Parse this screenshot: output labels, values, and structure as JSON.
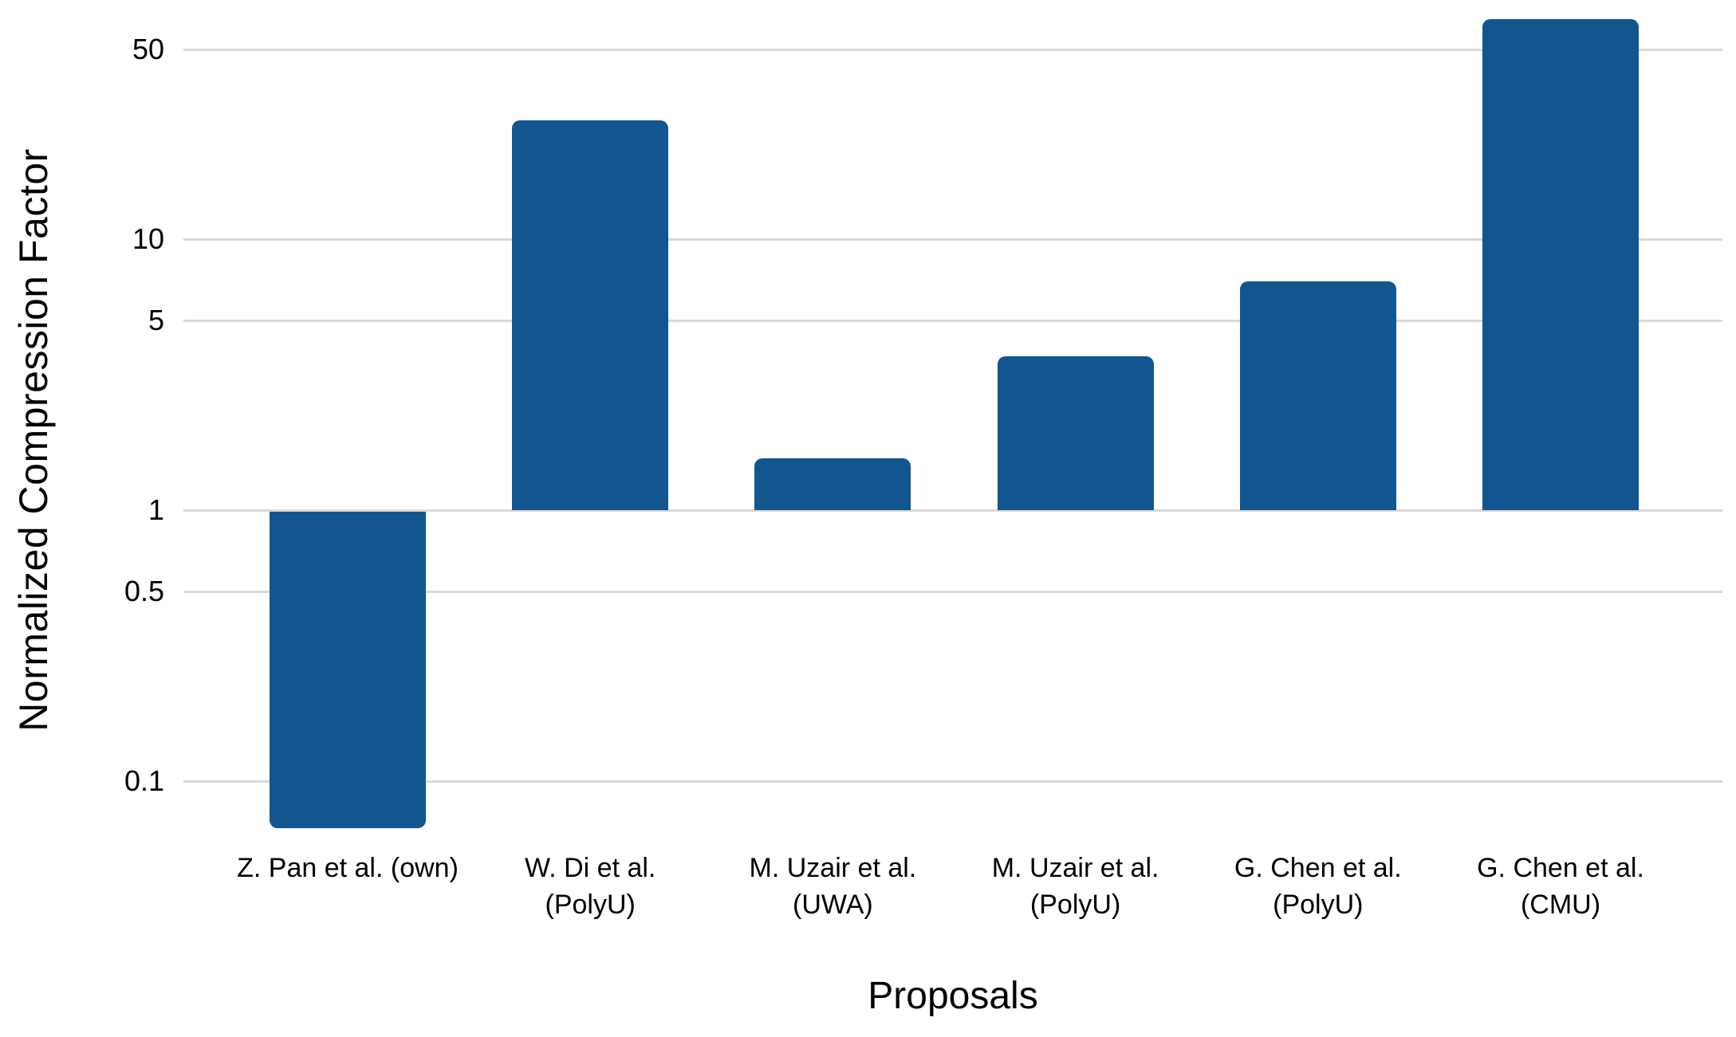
{
  "chart_data": {
    "type": "bar",
    "title": "",
    "xlabel": "Proposals",
    "ylabel": "Normalized Compression Factor",
    "y_scale": "log",
    "bar_baseline": 1,
    "grid": true,
    "legend": "none",
    "categories": [
      "Z. Pan et al. (own)",
      "W. Di et al.\n(PolyU)",
      "M. Uzair et al.\n(UWA)",
      "M. Uzair et al.\n(PolyU)",
      "G. Chen et al.\n(PolyU)",
      "G. Chen et al.\n(CMU)"
    ],
    "values": [
      0.067,
      27.5,
      1.55,
      3.7,
      7.0,
      65
    ],
    "y_ticks": [
      {
        "value": 50,
        "label": "50"
      },
      {
        "value": 10,
        "label": "10"
      },
      {
        "value": 5,
        "label": "5"
      },
      {
        "value": 1,
        "label": "1"
      },
      {
        "value": 0.5,
        "label": "0.5"
      },
      {
        "value": 0.1,
        "label": "0.1"
      }
    ],
    "ylim": [
      0.065,
      70
    ],
    "colors": {
      "bar": "#12568F",
      "gridline": "#D9D9D9",
      "text": "#000000",
      "background": "#FFFFFF"
    }
  }
}
